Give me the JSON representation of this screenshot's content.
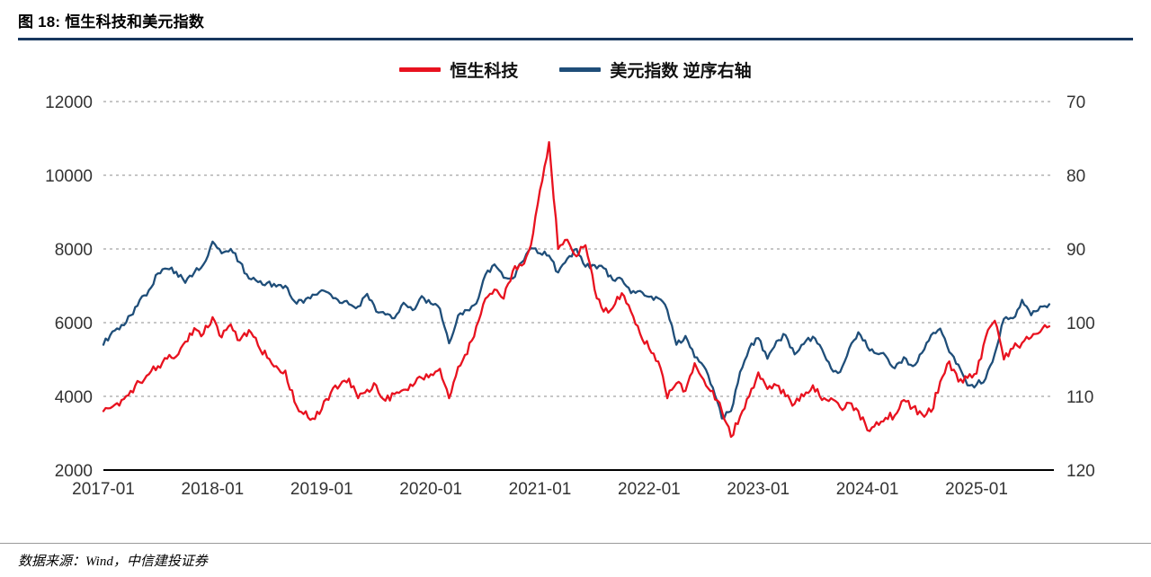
{
  "header": {
    "title": "图 18:  恒生科技和美元指数"
  },
  "legend": {
    "items": [
      {
        "label": "恒生科技",
        "color": "#e8121f"
      },
      {
        "label": "美元指数 逆序右轴",
        "color": "#1f4e79"
      }
    ]
  },
  "footer": {
    "source": "数据来源：Wind，中信建投证券"
  },
  "chart_data": {
    "type": "line",
    "title": "恒生科技和美元指数",
    "x_start": "2017-01",
    "x_frequency": "monthly",
    "x_tick_labels": [
      "2017-01",
      "2018-01",
      "2019-01",
      "2020-01",
      "2021-01",
      "2022-01",
      "2023-01",
      "2024-01",
      "2025-01"
    ],
    "left_axis": {
      "label": "恒生科技",
      "min": 2000,
      "max": 12000,
      "ticks": [
        12000,
        10000,
        8000,
        6000,
        4000,
        2000
      ]
    },
    "right_axis": {
      "label": "美元指数(逆序)",
      "min": 70,
      "max": 120,
      "inverted": true,
      "ticks": [
        70,
        80,
        90,
        100,
        110,
        120
      ]
    },
    "grid": "dashed-horizontal",
    "legend_position": "top-center",
    "series": [
      {
        "name": "恒生科技",
        "axis": "left",
        "color": "#e8121f",
        "values": [
          3600,
          3720,
          3900,
          4150,
          4380,
          4600,
          4820,
          5020,
          5080,
          5480,
          5850,
          5700,
          6150,
          5600,
          5950,
          5520,
          5800,
          5380,
          5050,
          4820,
          4700,
          3850,
          3520,
          3400,
          3650,
          4100,
          4300,
          4480,
          3950,
          4180,
          4300,
          3880,
          4060,
          4180,
          4280,
          4500,
          4600,
          4750,
          3950,
          4800,
          5150,
          5900,
          6650,
          6900,
          6650,
          7400,
          7550,
          8100,
          9600,
          10900,
          8000,
          8250,
          7800,
          8100,
          6900,
          6300,
          6400,
          6800,
          6300,
          5700,
          5300,
          4950,
          3950,
          4350,
          4150,
          4900,
          4450,
          4150,
          3600,
          2900,
          3450,
          4000,
          4650,
          4200,
          4300,
          4000,
          3800,
          4000,
          4300,
          3900,
          3950,
          3700,
          3820,
          3600,
          3080,
          3300,
          3420,
          3480,
          3900,
          3700,
          3520,
          3580,
          4400,
          4950,
          4400,
          4500,
          4620,
          5600,
          6050,
          5000,
          5300,
          5450,
          5600,
          5750,
          5900
        ]
      },
      {
        "name": "美元指数",
        "axis": "right",
        "color": "#1f4e79",
        "values": [
          103.0,
          101.2,
          100.3,
          99.0,
          96.9,
          95.6,
          93.3,
          92.7,
          93.1,
          94.6,
          93.2,
          92.1,
          89.0,
          90.6,
          90.0,
          91.8,
          94.0,
          94.5,
          94.6,
          95.1,
          95.0,
          97.1,
          97.3,
          96.2,
          95.6,
          96.2,
          97.3,
          97.5,
          97.8,
          96.1,
          98.5,
          98.9,
          99.4,
          97.3,
          98.3,
          96.4,
          97.4,
          98.1,
          102.8,
          99.0,
          98.3,
          97.4,
          93.5,
          92.1,
          93.9,
          94.0,
          91.8,
          89.9,
          90.6,
          90.9,
          93.2,
          91.3,
          90.0,
          92.4,
          92.2,
          92.6,
          94.2,
          94.1,
          96.0,
          95.7,
          96.5,
          96.7,
          98.3,
          103.0,
          101.8,
          104.7,
          105.9,
          108.8,
          113.0,
          112.0,
          106.7,
          103.5,
          102.1,
          104.9,
          102.5,
          101.7,
          104.3,
          102.9,
          101.9,
          103.6,
          106.2,
          106.7,
          103.5,
          101.3,
          103.3,
          104.2,
          104.5,
          106.2,
          104.7,
          105.9,
          104.1,
          101.7,
          100.8,
          104.0,
          105.7,
          108.5,
          108.4,
          107.6,
          104.2,
          99.5,
          99.4,
          96.9,
          99.0,
          97.8,
          97.5
        ]
      }
    ]
  }
}
